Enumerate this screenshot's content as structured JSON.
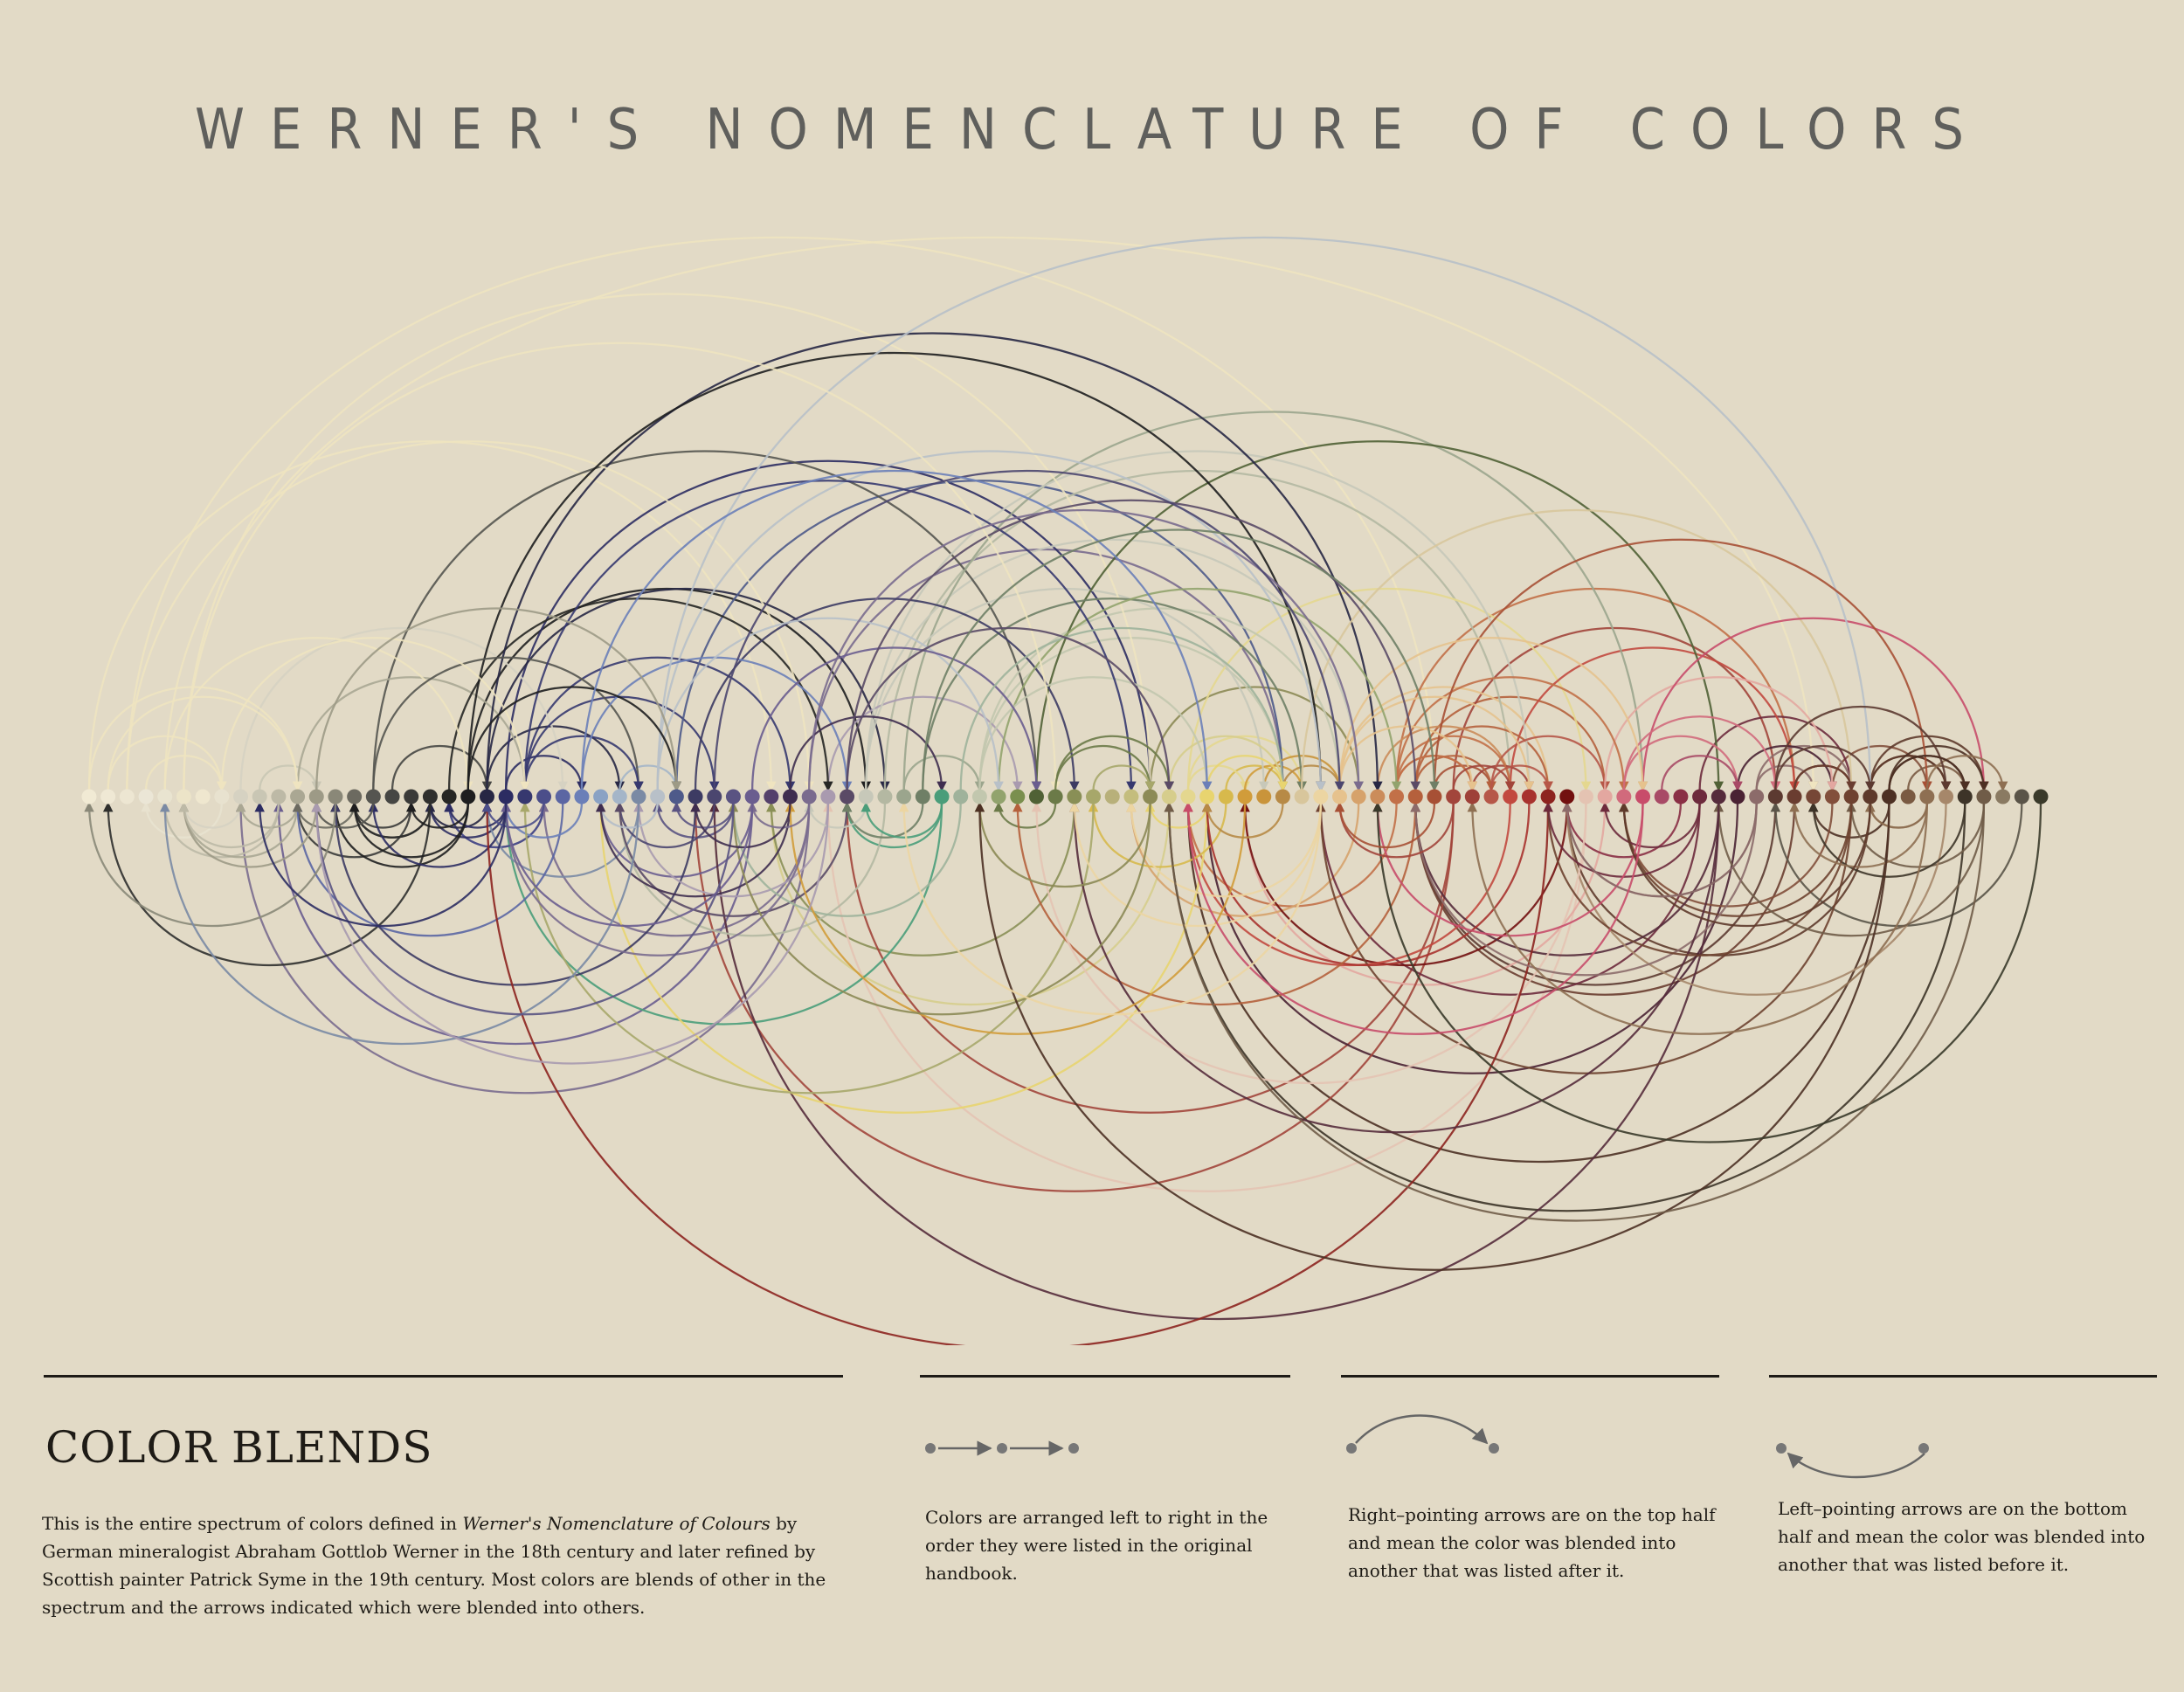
{
  "title": "WERNER'S NOMENCLATURE OF COLORS",
  "colors": [
    "#f1ead4",
    "#efe8d4",
    "#ede6d2",
    "#ebe6d6",
    "#e9e4d0",
    "#ece4c8",
    "#efe7cf",
    "#e8e2cf",
    "#d6d2c2",
    "#c9c6b4",
    "#bdb9a6",
    "#aaa793",
    "#9d9a86",
    "#8a8878",
    "#6c6a60",
    "#555550",
    "#464643",
    "#3a3a38",
    "#2f2f2d",
    "#262624",
    "#1e1e1f",
    "#272744",
    "#2c2c62",
    "#36386f",
    "#4b4e8a",
    "#5b66a3",
    "#6b7fb8",
    "#8aa2c4",
    "#a4b5c8",
    "#7a8aa4",
    "#b8c0c8",
    "#4e5a8a",
    "#3d3b63",
    "#4b466f",
    "#5a5382",
    "#6a5d8f",
    "#54406b",
    "#3f2d4f",
    "#7a6b8e",
    "#a99aaf",
    "#5a4a66",
    "#c7c8b9",
    "#b4b8a2",
    "#9ba58d",
    "#6f7f66",
    "#4a9d7a",
    "#9fb29b",
    "#c2c7ae",
    "#92a36d",
    "#7a8f4e",
    "#506135",
    "#6b7a48",
    "#898f56",
    "#a7a76a",
    "#b8b07a",
    "#c4bd7d",
    "#8c8a55",
    "#d6cd8c",
    "#e4d78f",
    "#e8d46f",
    "#d7b94c",
    "#d19c3a",
    "#c9943b",
    "#b78a46",
    "#d8c69c",
    "#ecd5a2",
    "#e6c28d",
    "#d6a26b",
    "#cb8c5a",
    "#c27048",
    "#b5603c",
    "#a75035",
    "#a2453b",
    "#9e4038",
    "#b65748",
    "#c2493f",
    "#a8322e",
    "#8d231f",
    "#72100f",
    "#e4c3b2",
    "#e3a7a0",
    "#d16a7c",
    "#c84c6a",
    "#a84a66",
    "#8a2f45",
    "#6d2a3c",
    "#552b3b",
    "#4a2233",
    "#8c6b6a",
    "#5c3a31",
    "#6a3d30",
    "#764736",
    "#824f3b",
    "#6e4230",
    "#5e3a2b",
    "#4d3023",
    "#7a5a42",
    "#8e6f52",
    "#a6876a",
    "#3d3428",
    "#705c48",
    "#8a7a62",
    "#5a5448",
    "#3a3a2a"
  ],
  "legend": {
    "heading": "COLOR BLENDS",
    "intro": {
      "before": "This is the entire spectrum of colors defined in ",
      "book": "Werner's Nomenclature of Colours",
      "after": " by German mineralogist Abraham Gottlob Werner in the 18th century and later refined by Scottish painter Patrick Syme in the 19th century. Most colors are blends of other in the spectrum and the arrows indicated which were blended into others."
    },
    "order_text": "Colors are arranged left to right in the order they were listed in the original handbook.",
    "right_text": "Right–pointing arrows are on the top half and mean the color was blended into another that was listed after it.",
    "left_text": "Left–pointing arrows are on the bottom half and mean the color was blended into another that was listed before it."
  }
}
